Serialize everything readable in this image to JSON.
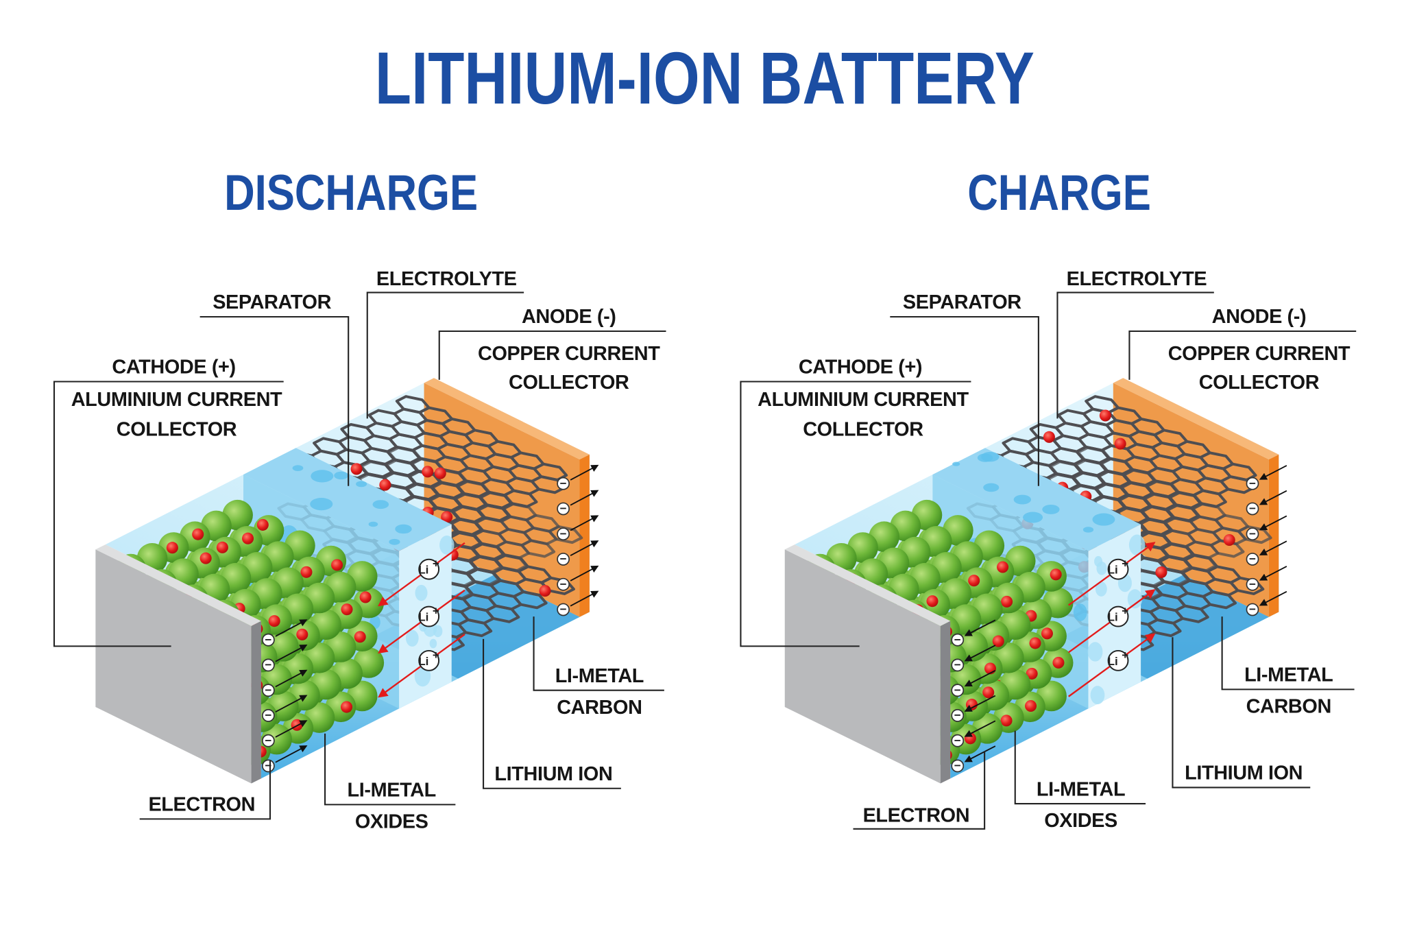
{
  "title": "LITHIUM-ION BATTERY",
  "colors": {
    "title_blue": "#1c4ea3",
    "cathode_collector_gray": "#b9babc",
    "anode_collector_orange": "#ef9a4a",
    "electrolyte_blue": "#56b4e6",
    "li_metal_oxide_green": "#6fb83a",
    "lithium_ion_red": "#e31b1b",
    "carbon_gray": "#555555"
  },
  "ion": {
    "symbol": "Li",
    "charge": "+"
  },
  "electron_symbol": "−",
  "panels": [
    {
      "heading": "DISCHARGE",
      "mode": "discharge",
      "labels": {
        "separator": "SEPARATOR",
        "electrolyte": "ELECTROLYTE",
        "anode": "ANODE (-)",
        "copper_1": "COPPER CURRENT",
        "copper_2": "COLLECTOR",
        "cathode": "CATHODE (+)",
        "aluminium_1": "ALUMINIUM CURRENT",
        "aluminium_2": "COLLECTOR",
        "carbon_1": "LI-METAL",
        "carbon_2": "CARBON",
        "lithium_ion": "LITHIUM ION",
        "oxides_1": "LI-METAL",
        "oxides_2": "OXIDES",
        "electron": "ELECTRON"
      }
    },
    {
      "heading": "CHARGE",
      "mode": "charge",
      "labels": {
        "separator": "SEPARATOR",
        "electrolyte": "ELECTROLYTE",
        "anode": "ANODE (-)",
        "copper_1": "COPPER CURRENT",
        "copper_2": "COLLECTOR",
        "cathode": "CATHODE (+)",
        "aluminium_1": "ALUMINIUM CURRENT",
        "aluminium_2": "COLLECTOR",
        "carbon_1": "LI-METAL",
        "carbon_2": "CARBON",
        "lithium_ion": "LITHIUM ION",
        "oxides_1": "LI-METAL",
        "oxides_2": "OXIDES",
        "electron": "ELECTRON"
      }
    }
  ]
}
